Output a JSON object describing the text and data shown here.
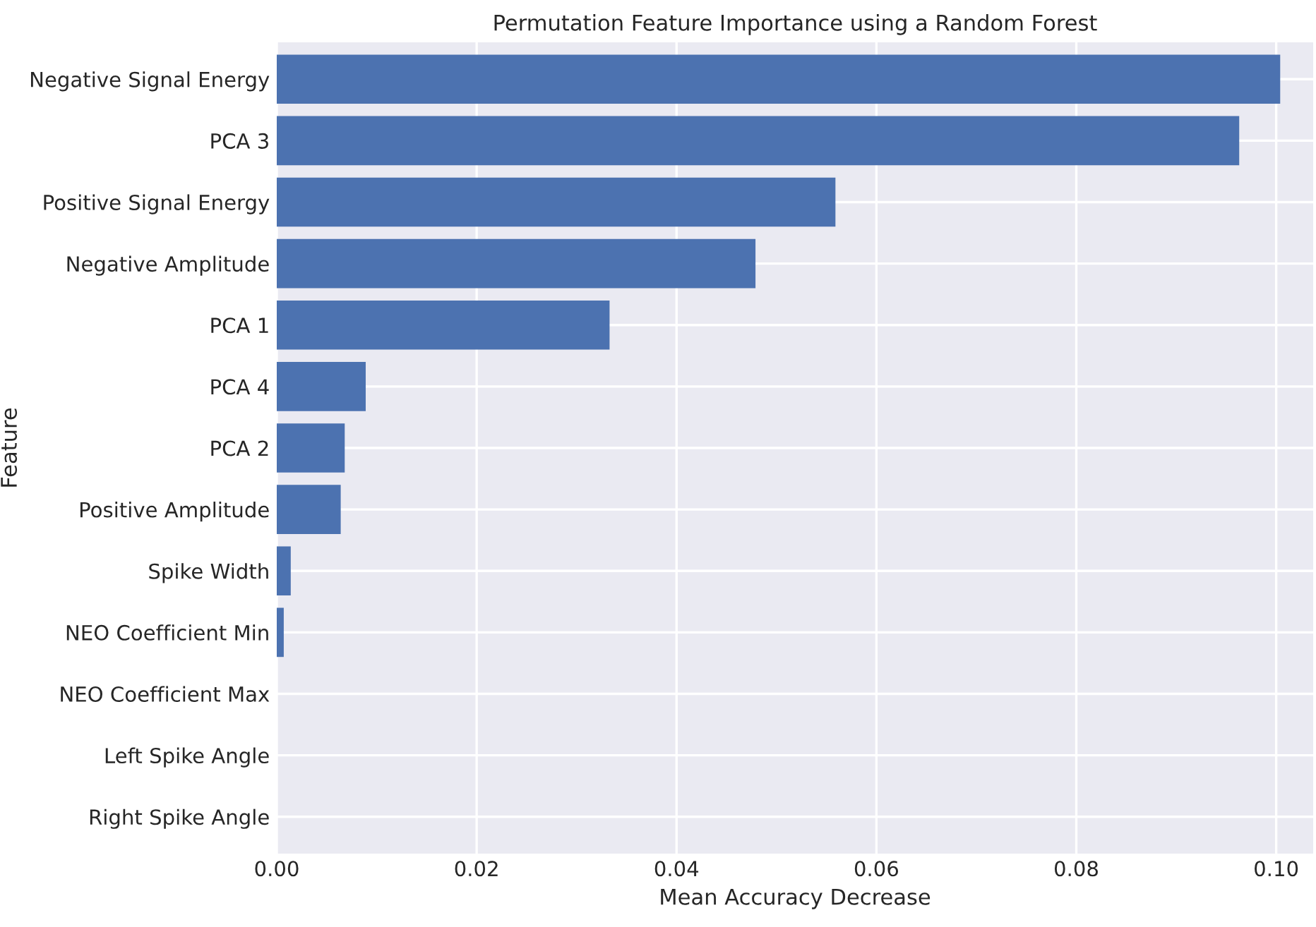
{
  "chart_data": {
    "type": "bar",
    "orientation": "horizontal",
    "title": "Permutation Feature Importance using a Random Forest",
    "xlabel": "Mean Accuracy Decrease",
    "ylabel": "Feature",
    "categories": [
      "Negative Signal Energy",
      "PCA 3",
      "Positive Signal Energy",
      "Negative Amplitude",
      "PCA 1",
      "PCA 4",
      "PCA 2",
      "Positive Amplitude",
      "Spike Width",
      "NEO Coefficient Min",
      "NEO Coefficient Max",
      "Left Spike Angle",
      "Right Spike Angle"
    ],
    "values": [
      0.1004,
      0.0963,
      0.0559,
      0.0479,
      0.0333,
      0.0089,
      0.0068,
      0.0064,
      0.0014,
      0.0007,
      0.0,
      0.0,
      0.0
    ],
    "color": "#4c72b0",
    "xlim": [
      0,
      0.1037
    ],
    "xticks": [
      {
        "value": 0,
        "label": "0.00"
      },
      {
        "value": 0.02,
        "label": "0.02"
      },
      {
        "value": 0.04,
        "label": "0.04"
      },
      {
        "value": 0.06,
        "label": "0.06"
      },
      {
        "value": 0.08,
        "label": "0.08"
      },
      {
        "value": 0.1,
        "label": "0.10"
      }
    ],
    "grid": true
  }
}
